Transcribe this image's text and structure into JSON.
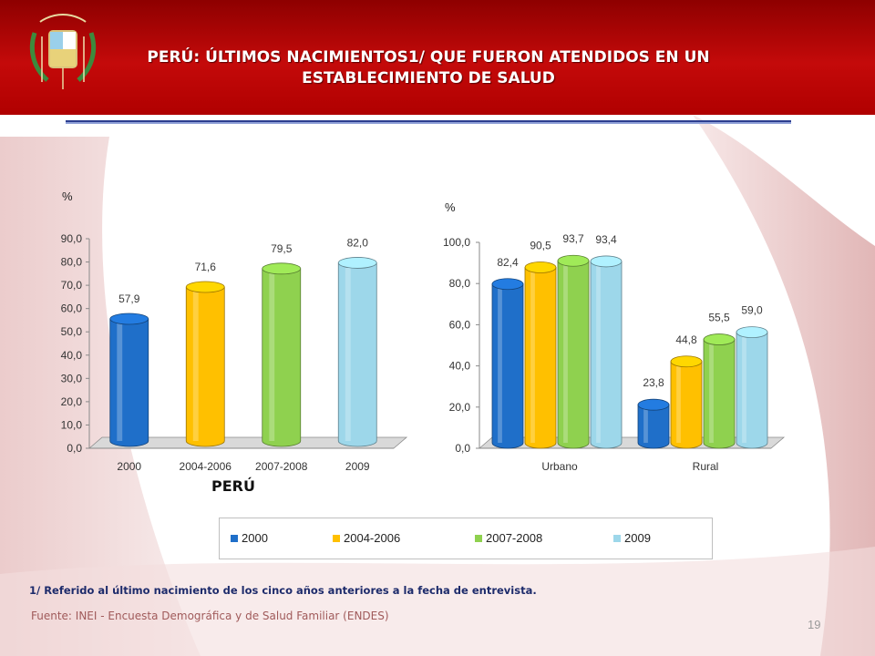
{
  "header": {
    "title_line1": "PERÚ: ÚLTIMOS NACIMIENTOS1/ QUE FUERON ATENDIDOS EN UN",
    "title_line2": "ESTABLECIMIENTO DE SALUD",
    "colors": {
      "band": "#c40a0a",
      "rule": "#2b3d8f"
    }
  },
  "chart_data": [
    {
      "type": "bar",
      "ylabel": "%",
      "ylim": [
        0,
        90
      ],
      "yticks": [
        "0,0",
        "10,0",
        "20,0",
        "30,0",
        "40,0",
        "50,0",
        "60,0",
        "70,0",
        "80,0",
        "90,0"
      ],
      "categories": [
        "2000",
        "2004-2006",
        "2007-2008",
        "2009"
      ],
      "values": [
        57.9,
        71.6,
        79.5,
        82.0
      ],
      "data_labels": [
        "57,9",
        "71,6",
        "79,5",
        "82,0"
      ],
      "xlabel": "PERÚ",
      "grid": false
    },
    {
      "type": "bar",
      "ylabel": "%",
      "ylim": [
        0,
        100
      ],
      "yticks": [
        "0,0",
        "20,0",
        "40,0",
        "60,0",
        "80,0",
        "100,0"
      ],
      "categories": [
        "Urbano",
        "Rural"
      ],
      "series": [
        {
          "name": "2000",
          "values": [
            82.4,
            23.8
          ],
          "labels": [
            "82,4",
            "23,8"
          ]
        },
        {
          "name": "2004-2006",
          "values": [
            90.5,
            44.8
          ],
          "labels": [
            "90,5",
            "44,8"
          ]
        },
        {
          "name": "2007-2008",
          "values": [
            93.7,
            55.5
          ],
          "labels": [
            "93,7",
            "55,5"
          ]
        },
        {
          "name": "2009",
          "values": [
            93.4,
            59.0
          ],
          "labels": [
            "93,4",
            "59,0"
          ]
        }
      ],
      "grid": false
    }
  ],
  "legend": {
    "items": [
      {
        "label": "2000",
        "color": "#1f6fc9"
      },
      {
        "label": "2004-2006",
        "color": "#ffc000"
      },
      {
        "label": "2007-2008",
        "color": "#8fd14f"
      },
      {
        "label": "2009",
        "color": "#9dd7ea"
      }
    ],
    "placement": "bottom"
  },
  "footer": {
    "note": "1/  Referido al último nacimiento  de los cinco años anteriores a la fecha de entrevista.",
    "source": "Fuente: INEI - Encuesta Demográfica y de Salud Familiar (ENDES)",
    "page_number": "19"
  }
}
